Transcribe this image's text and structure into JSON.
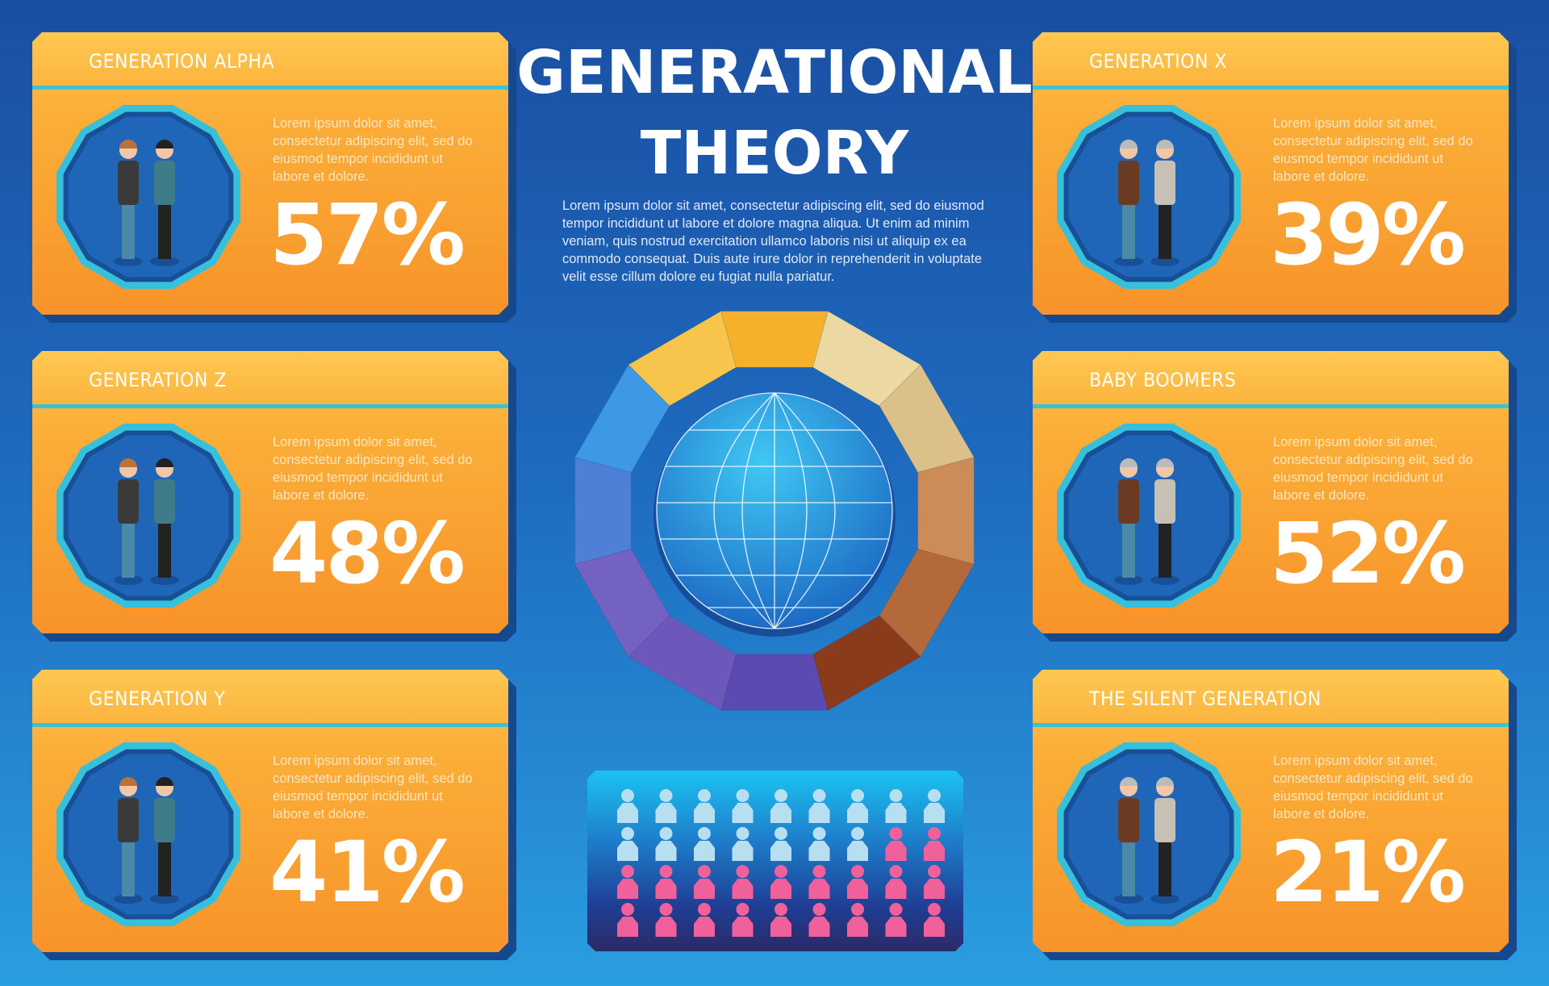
{
  "header": {
    "title_line1": "GENERATIONAL",
    "title_line2": "THEORY",
    "intro": "Lorem ipsum dolor sit amet, consectetur adipiscing elit, sed do eiusmod tempor incididunt ut labore et dolore magna aliqua. Ut enim ad minim veniam, quis nostrud exercitation ullamco laboris nisi ut aliquip ex ea commodo consequat. Duis aute irure dolor in reprehenderit in voluptate velit esse cillum dolore eu fugiat nulla pariatur."
  },
  "cards": [
    {
      "title": "GENERATION ALPHA",
      "desc": "Lorem ipsum dolor sit amet, consectetur adipiscing elit, sed do eiusmod tempor incididunt ut labore et dolore.",
      "percent": "57%",
      "icon": "schoolchildren-illustration"
    },
    {
      "title": "GENERATION Z",
      "desc": "Lorem ipsum dolor sit amet, consectetur adipiscing elit, sed do eiusmod tempor incididunt ut labore et dolore.",
      "percent": "48%",
      "icon": "teenagers-illustration"
    },
    {
      "title": "GENERATION Y",
      "desc": "Lorem ipsum dolor sit amet, consectetur adipiscing elit, sed do eiusmod tempor incididunt ut labore et dolore.",
      "percent": "41%",
      "icon": "young-adults-illustration"
    },
    {
      "title": "GENERATION X",
      "desc": "Lorem ipsum dolor sit amet, consectetur adipiscing elit, sed do eiusmod tempor incididunt ut labore et dolore.",
      "percent": "39%",
      "icon": "middle-aged-couple-illustration"
    },
    {
      "title": "BABY BOOMERS",
      "desc": "Lorem ipsum dolor sit amet, consectetur adipiscing elit, sed do eiusmod tempor incididunt ut labore et dolore.",
      "percent": "52%",
      "icon": "elderly-couple-illustration"
    },
    {
      "title": "THE SILENT GENERATION",
      "desc": "Lorem ipsum dolor sit amet, consectetur adipiscing elit, sed do eiusmod tempor incididunt ut labore et dolore.",
      "percent": "21%",
      "icon": "senior-wheelchair-illustration"
    }
  ],
  "ring": {
    "segment_colors": [
      "#f5b12c",
      "#ecd8a2",
      "#dcc08a",
      "#cc8c58",
      "#b4693b",
      "#8a3b1c",
      "#5a4ab2",
      "#6c58ba",
      "#7462c2",
      "#4f80d8",
      "#3d98e6",
      "#f7c44c"
    ],
    "globe_color": "#2a9fe6"
  },
  "people_grid": {
    "total": 36,
    "highlighted": 20,
    "base_color": "#b8dff0",
    "highlight_color": "#f0609a"
  },
  "colors": {
    "background": "#1e6cc0",
    "card": "#fbae38",
    "accent_rule": "#3cc2d6"
  }
}
